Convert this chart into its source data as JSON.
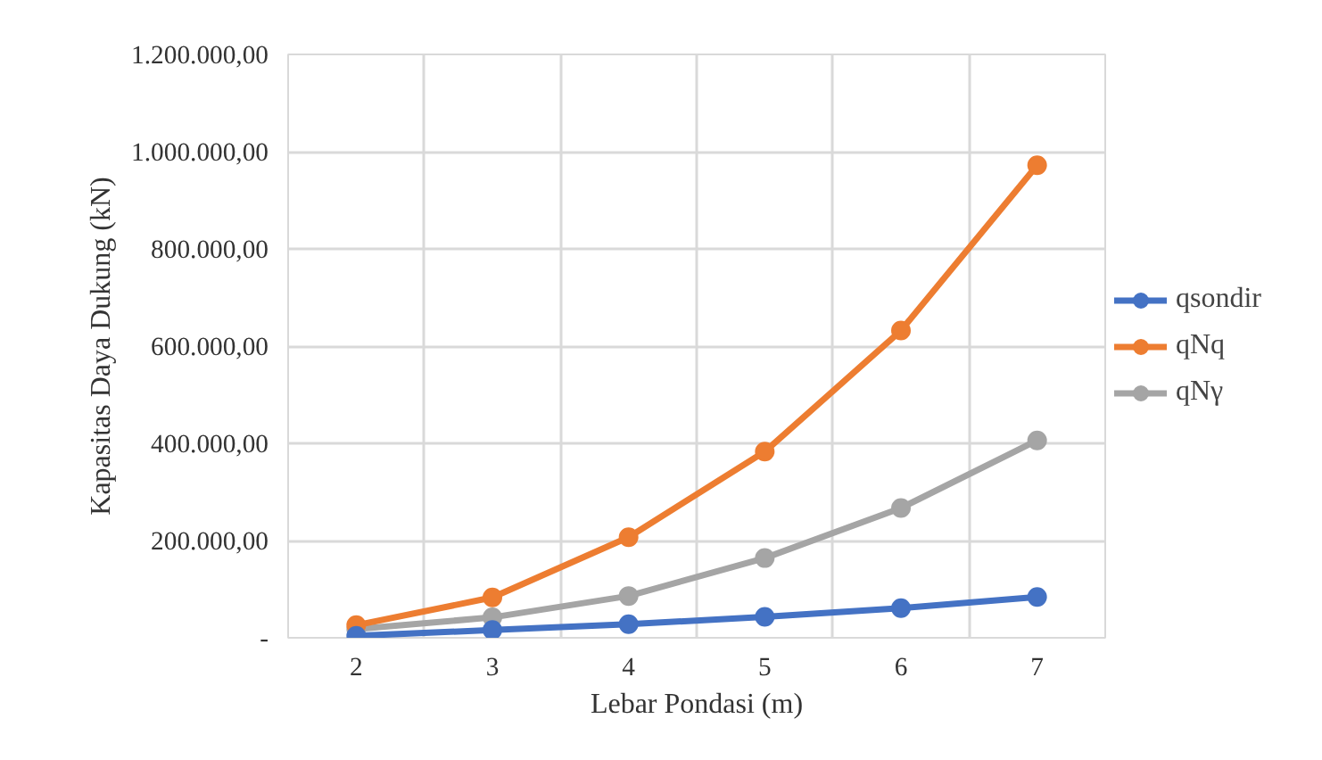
{
  "chart_data": {
    "type": "line",
    "xlabel": "Lebar Pondasi (m)",
    "ylabel": "Kapasitas Daya Dukung (kN)",
    "categories": [
      "2",
      "3",
      "4",
      "5",
      "6",
      "7"
    ],
    "series": [
      {
        "name": "qsondir",
        "color": "#4472c4",
        "values": [
          4000,
          16000,
          28000,
          43000,
          61000,
          84000
        ]
      },
      {
        "name": "qNq",
        "color": "#ed7d31",
        "values": [
          26000,
          83000,
          207000,
          383000,
          632000,
          972000
        ]
      },
      {
        "name": "qNγ",
        "color": "#a5a5a5",
        "values": [
          18000,
          42000,
          86000,
          164000,
          267000,
          406000
        ]
      }
    ],
    "ylim": [
      0,
      1200000
    ],
    "yticks": [
      {
        "value": 0,
        "label": "-"
      },
      {
        "value": 200000,
        "label": "200.000,00"
      },
      {
        "value": 400000,
        "label": "400.000,00"
      },
      {
        "value": 600000,
        "label": "600.000,00"
      },
      {
        "value": 800000,
        "label": "800.000,00"
      },
      {
        "value": 1000000,
        "label": "1.000.000,00"
      },
      {
        "value": 1200000,
        "label": "1.200.000,00"
      }
    ],
    "grid": true,
    "legend": "right",
    "marker": "circle",
    "line_style": "solid"
  }
}
